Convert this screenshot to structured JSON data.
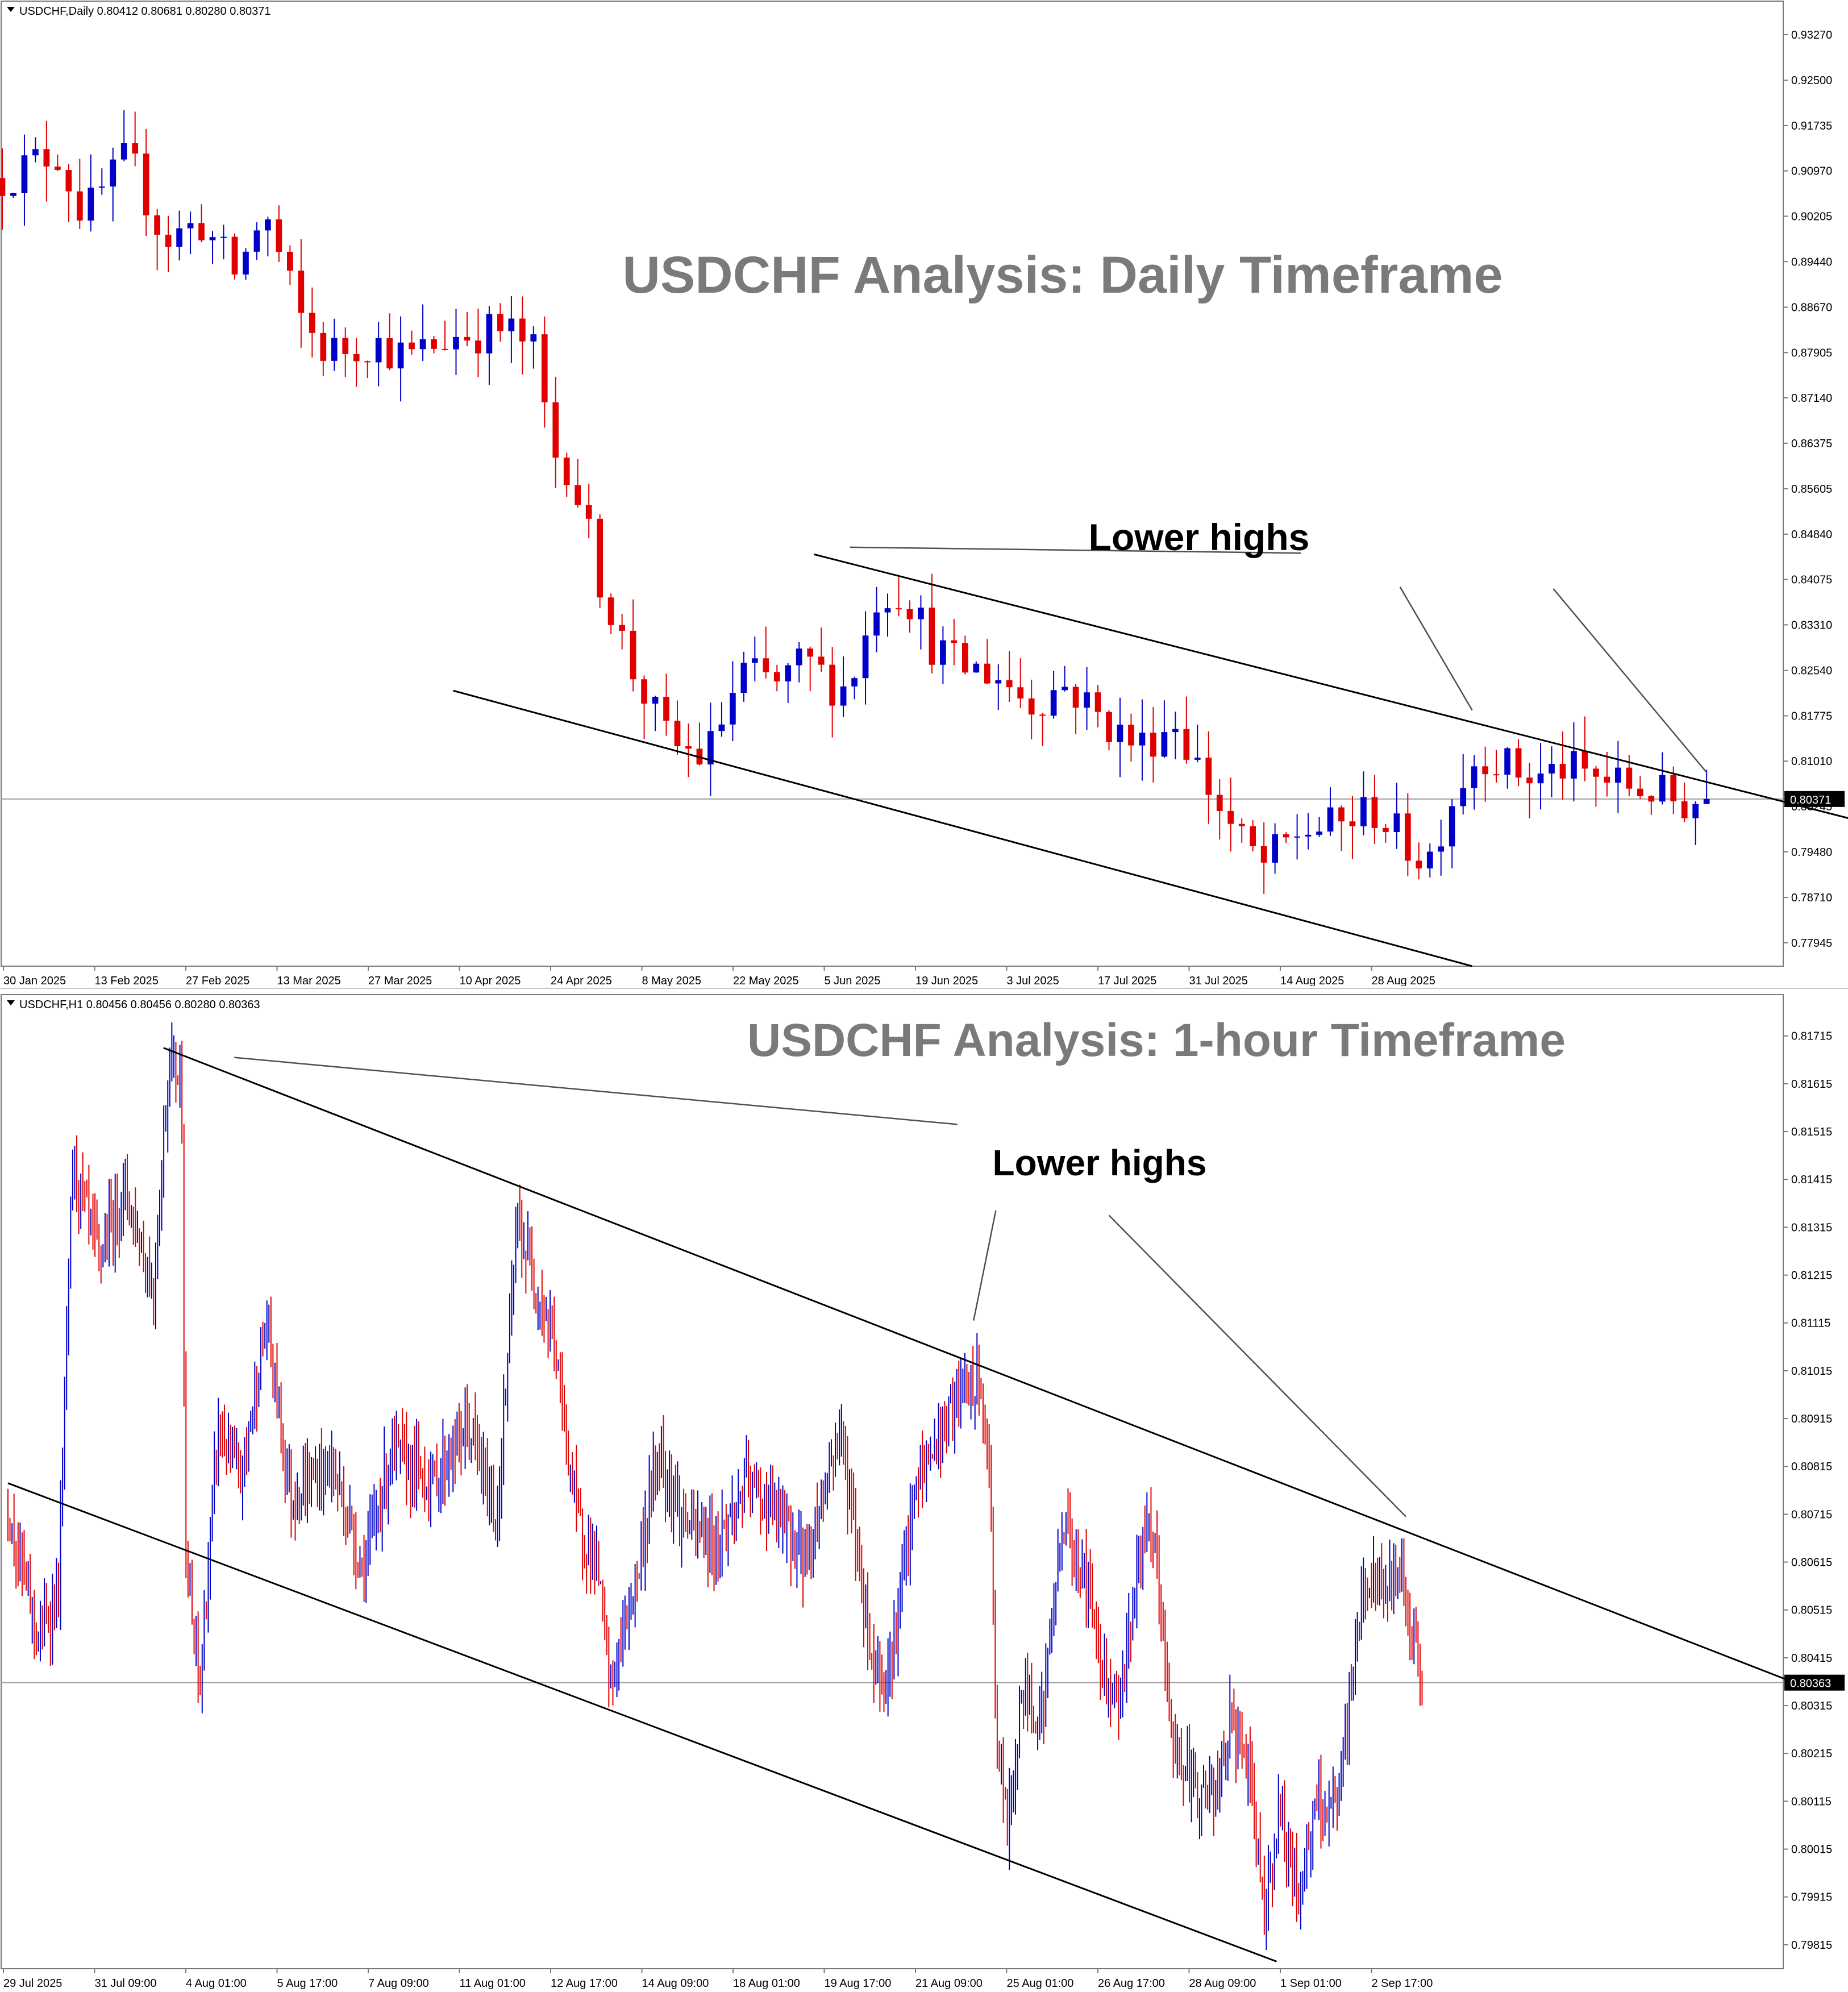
{
  "colors": {
    "bull": "#0000c8",
    "bear": "#e00000",
    "line": "#000000",
    "annotation_line": "#505050",
    "price_line": "#a0a0a0",
    "title_text": "#7a7a7a",
    "axis_text": "#000000",
    "frame": "#7a7a7a",
    "label_bg": "#000000",
    "label_fg": "#ffffff"
  },
  "chart_data": [
    {
      "type": "candlestick",
      "symbol_header": "USDCHF,Daily  0.80412 0.80681 0.80280 0.80371",
      "title": "USDCHF Analysis: Daily Timeframe",
      "annotation": "Lower highs",
      "current_price_label": "0.80371",
      "current_price": 0.80371,
      "ylim": [
        0.7755,
        0.9355
      ],
      "y_ticks": [
        "0.93270",
        "0.92500",
        "0.91735",
        "0.90970",
        "0.90205",
        "0.89440",
        "0.88670",
        "0.87905",
        "0.87140",
        "0.86375",
        "0.85605",
        "0.84840",
        "0.84075",
        "0.83310",
        "0.82540",
        "0.81775",
        "0.81010",
        "0.80245",
        "0.79480",
        "0.78710",
        "0.77945"
      ],
      "x_labels": [
        "30 Jan 2025",
        "13 Feb 2025",
        "27 Feb 2025",
        "13 Mar 2025",
        "27 Mar 2025",
        "10 Apr 2025",
        "24 Apr 2025",
        "8 May 2025",
        "22 May 2025",
        "5 Jun 2025",
        "19 Jun 2025",
        "3 Jul 2025",
        "17 Jul 2025",
        "31 Jul 2025",
        "14 Aug 2025",
        "28 Aug 2025"
      ],
      "x_range": [
        0,
        196
      ],
      "candles_count": 155,
      "waypoints": [
        [
          0,
          0.9085
        ],
        [
          6,
          0.913
        ],
        [
          9,
          0.902
        ],
        [
          14,
          0.912
        ],
        [
          18,
          0.898
        ],
        [
          22,
          0.901
        ],
        [
          26,
          0.892
        ],
        [
          29,
          0.903
        ],
        [
          33,
          0.885
        ],
        [
          36,
          0.879
        ],
        [
          41,
          0.881
        ],
        [
          45,
          0.878
        ],
        [
          50,
          0.882
        ],
        [
          56,
          0.883
        ],
        [
          59,
          0.879
        ],
        [
          61,
          0.862
        ],
        [
          63,
          0.86
        ],
        [
          66,
          0.842
        ],
        [
          70,
          0.825
        ],
        [
          74,
          0.813
        ],
        [
          78,
          0.8105
        ],
        [
          82,
          0.825
        ],
        [
          86,
          0.823
        ],
        [
          89,
          0.827
        ],
        [
          93,
          0.822
        ],
        [
          95,
          0.827
        ],
        [
          97,
          0.838
        ],
        [
          100,
          0.839
        ],
        [
          103,
          0.83
        ],
        [
          106,
          0.826
        ],
        [
          110,
          0.825
        ],
        [
          114,
          0.82
        ],
        [
          118,
          0.823
        ],
        [
          122,
          0.817
        ],
        [
          126,
          0.8125
        ],
        [
          130,
          0.817
        ],
        [
          134,
          0.805
        ],
        [
          137,
          0.797
        ],
        [
          140,
          0.7925
        ],
        [
          144,
          0.7985
        ],
        [
          148,
          0.799
        ],
        [
          152,
          0.802
        ],
        [
          155,
          0.797
        ],
        [
          158,
          0.793
        ],
        [
          161,
          0.805
        ],
        [
          164,
          0.812
        ],
        [
          167,
          0.809
        ],
        [
          170,
          0.807
        ],
        [
          173,
          0.809
        ],
        [
          176,
          0.8075
        ],
        [
          180,
          0.806
        ],
        [
          183,
          0.805
        ],
        [
          186,
          0.803
        ],
        [
          189,
          0.8037
        ]
      ],
      "trendlines": [
        {
          "name": "upper-channel",
          "points": [
            [
              90,
              0.845
            ],
            [
              233,
              0.7895
            ]
          ]
        },
        {
          "name": "lower-channel",
          "points": [
            [
              50,
              0.822
            ],
            [
              163,
              0.7755
            ]
          ]
        }
      ],
      "annotation_lines": [
        {
          "points": [
            [
              94,
              0.8462
            ],
            [
              144,
              0.8452
            ]
          ]
        },
        {
          "points": [
            [
              155,
              0.8395
            ],
            [
              163,
              0.8187
            ]
          ]
        },
        {
          "points": [
            [
              172,
              0.8392
            ],
            [
              189,
              0.8082
            ]
          ]
        }
      ]
    },
    {
      "type": "candlestick",
      "symbol_header": "USDCHF,H1  0.80456 0.80456 0.80280 0.80363",
      "title": "USDCHF Analysis: 1-hour Timeframe",
      "annotation": "Lower highs",
      "current_price_label": "0.80363",
      "current_price": 0.80363,
      "ylim": [
        0.79765,
        0.8178
      ],
      "y_ticks": [
        "0.81715",
        "0.81615",
        "0.81515",
        "0.81415",
        "0.81315",
        "0.81215",
        "0.81115",
        "0.81015",
        "0.80915",
        "0.80815",
        "0.80715",
        "0.80615",
        "0.80515",
        "0.80415",
        "0.80315",
        "0.80215",
        "0.80115",
        "0.80015",
        "0.79915",
        "0.79815"
      ],
      "x_labels": [
        "29 Jul 2025",
        "31 Jul 09:00",
        "4 Aug 01:00",
        "5 Aug 17:00",
        "7 Aug 09:00",
        "11 Aug 01:00",
        "12 Aug 17:00",
        "14 Aug 09:00",
        "18 Aug 01:00",
        "19 Aug 17:00",
        "21 Aug 09:00",
        "25 Aug 01:00",
        "26 Aug 17:00",
        "28 Aug 09:00",
        "1 Sep 01:00",
        "2 Sep 17:00"
      ],
      "x_range": [
        0,
        880
      ],
      "candles_count": 700,
      "waypoints": [
        [
          0,
          0.8074
        ],
        [
          15,
          0.8045
        ],
        [
          25,
          0.8055
        ],
        [
          32,
          0.8145
        ],
        [
          45,
          0.8125
        ],
        [
          58,
          0.814
        ],
        [
          72,
          0.8118
        ],
        [
          80,
          0.8168
        ],
        [
          86,
          0.8162
        ],
        [
          88,
          0.806
        ],
        [
          95,
          0.8035
        ],
        [
          104,
          0.809
        ],
        [
          115,
          0.8078
        ],
        [
          128,
          0.8112
        ],
        [
          140,
          0.8075
        ],
        [
          160,
          0.8082
        ],
        [
          176,
          0.806
        ],
        [
          190,
          0.8085
        ],
        [
          210,
          0.8078
        ],
        [
          228,
          0.809
        ],
        [
          242,
          0.807
        ],
        [
          252,
          0.8132
        ],
        [
          270,
          0.8108
        ],
        [
          282,
          0.807
        ],
        [
          292,
          0.806
        ],
        [
          298,
          0.8035
        ],
        [
          312,
          0.806
        ],
        [
          322,
          0.8085
        ],
        [
          334,
          0.807
        ],
        [
          350,
          0.8065
        ],
        [
          366,
          0.8078
        ],
        [
          380,
          0.8072
        ],
        [
          395,
          0.8062
        ],
        [
          412,
          0.809
        ],
        [
          428,
          0.804
        ],
        [
          436,
          0.8038
        ],
        [
          450,
          0.8078
        ],
        [
          464,
          0.809
        ],
        [
          474,
          0.8098
        ],
        [
          482,
          0.8098
        ],
        [
          487,
          0.807
        ],
        [
          489,
          0.8025
        ],
        [
          495,
          0.8005
        ],
        [
          502,
          0.8035
        ],
        [
          512,
          0.803
        ],
        [
          522,
          0.807
        ],
        [
          534,
          0.8058
        ],
        [
          542,
          0.804
        ],
        [
          550,
          0.8032
        ],
        [
          562,
          0.8068
        ],
        [
          568,
          0.8064
        ],
        [
          576,
          0.8025
        ],
        [
          586,
          0.8015
        ],
        [
          598,
          0.8012
        ],
        [
          605,
          0.8028
        ],
        [
          613,
          0.802
        ],
        [
          622,
          0.799
        ],
        [
          630,
          0.801
        ],
        [
          638,
          0.7992
        ],
        [
          648,
          0.801
        ],
        [
          658,
          0.801
        ],
        [
          666,
          0.804
        ],
        [
          672,
          0.8058
        ],
        [
          680,
          0.8055
        ],
        [
          690,
          0.806
        ],
        [
          700,
          0.8036
        ]
      ],
      "trendlines": [
        {
          "name": "upper-channel",
          "points": [
            [
              77,
              0.8169
            ],
            [
              880,
              0.8037
            ]
          ]
        },
        {
          "name": "lower-channel",
          "points": [
            [
              0,
              0.8078
            ],
            [
              628,
              0.7978
            ]
          ]
        }
      ],
      "annotation_lines": [
        {
          "points": [
            [
              112,
              0.8167
            ],
            [
              470,
              0.8153
            ]
          ]
        },
        {
          "points": [
            [
              489,
              0.8135
            ],
            [
              478,
              0.8112
            ]
          ]
        },
        {
          "points": [
            [
              545,
              0.8134
            ],
            [
              692,
              0.8071
            ]
          ]
        }
      ]
    }
  ]
}
